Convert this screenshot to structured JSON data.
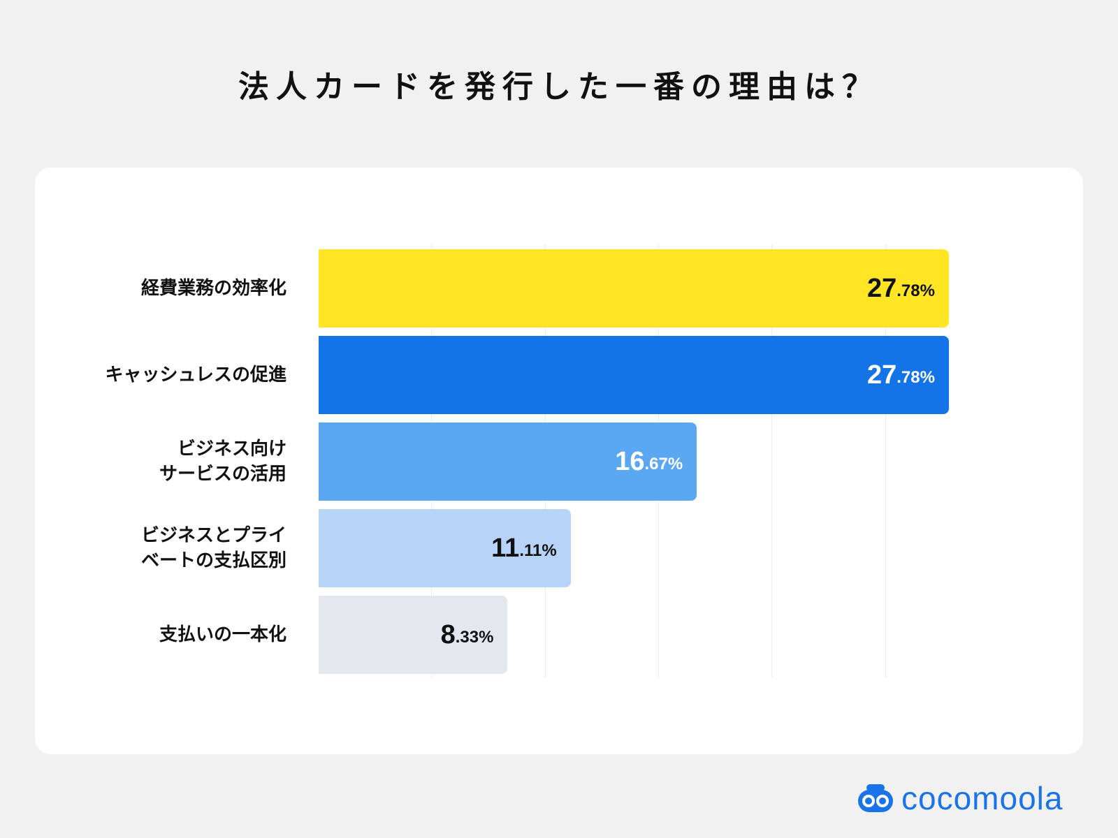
{
  "title": "法人カードを発行した一番の理由は？",
  "chart_data": {
    "type": "bar",
    "orientation": "horizontal",
    "title": "法人カードを発行した一番の理由は？",
    "categories": [
      "経費業務の効率化",
      "キャッシュレスの促進",
      "ビジネス向け\nサービスの活用",
      "ビジネスとプライ\nベートの支払区別",
      "支払いの一本化"
    ],
    "values": [
      27.78,
      27.78,
      16.67,
      11.11,
      8.33
    ],
    "value_labels": [
      {
        "int": "27",
        "dec": ".78%"
      },
      {
        "int": "27",
        "dec": ".78%"
      },
      {
        "int": "16",
        "dec": ".67%"
      },
      {
        "int": "11",
        "dec": ".11%"
      },
      {
        "int": "8",
        "dec": ".33%"
      }
    ],
    "colors": [
      "#ffe524",
      "#1473e6",
      "#5ba8f2",
      "#b5d4f8",
      "#e4e8ee"
    ],
    "label_colors": [
      "#111111",
      "#ffffff",
      "#ffffff",
      "#111111",
      "#111111"
    ],
    "xlim": [
      0,
      30
    ],
    "grid": true,
    "gridlines": [
      5,
      10,
      15,
      20,
      25
    ]
  },
  "brand": {
    "name": "cocomoola",
    "color": "#1a73e8"
  }
}
